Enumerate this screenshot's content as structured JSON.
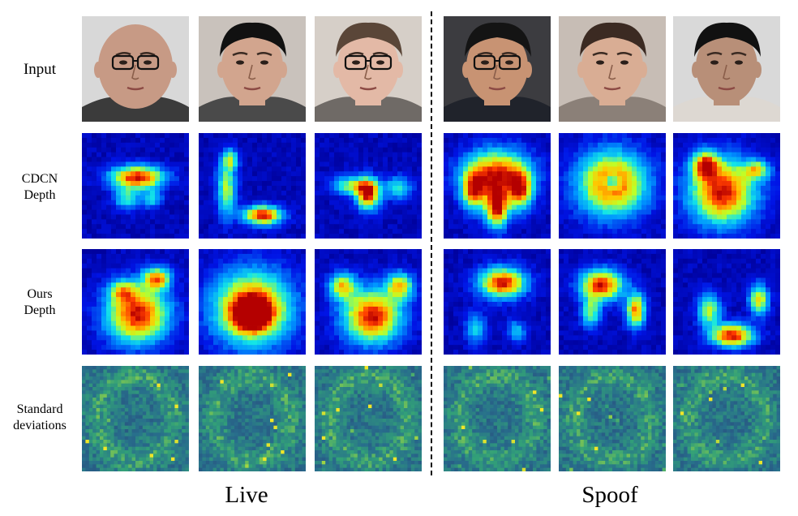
{
  "rows": {
    "input": [
      "Input"
    ],
    "cdcn": [
      "CDCN",
      "Depth"
    ],
    "ours": [
      "Ours",
      "Depth"
    ],
    "std": [
      "Standard",
      "deviations"
    ]
  },
  "groups": {
    "live": "Live",
    "spoof": "Spoof"
  },
  "colors": {
    "heat_background": "#0a18a6",
    "heat_hot": "#d11208",
    "std_base": "#2e6b8a",
    "divider": "#111111"
  },
  "faces": [
    {
      "name": "live-1",
      "skin": "#c79a85",
      "hair": "#b08070",
      "bg": "#d8d8d8",
      "shirt": "#3b3b3b",
      "glasses": true,
      "bald": true
    },
    {
      "name": "live-2",
      "skin": "#d2a58e",
      "hair": "#111111",
      "bg": "#c9c2bc",
      "shirt": "#4a4a4a",
      "glasses": false,
      "bald": false
    },
    {
      "name": "live-3",
      "skin": "#e3b9a6",
      "hair": "#5a4638",
      "bg": "#d6cfc8",
      "shirt": "#6f6a66",
      "glasses": true,
      "bald": false
    },
    {
      "name": "spoof-1",
      "skin": "#c89373",
      "hair": "#141414",
      "bg": "#3c3c40",
      "shirt": "#20232b",
      "glasses": true,
      "bald": false
    },
    {
      "name": "spoof-2",
      "skin": "#d9ad94",
      "hair": "#3b2a22",
      "bg": "#c7bdb5",
      "shirt": "#8b8078",
      "glasses": false,
      "bald": false
    },
    {
      "name": "spoof-3",
      "skin": "#b88f78",
      "hair": "#111111",
      "bg": "#d9d9d9",
      "shirt": "#ddd8d2",
      "glasses": false,
      "bald": false
    }
  ]
}
